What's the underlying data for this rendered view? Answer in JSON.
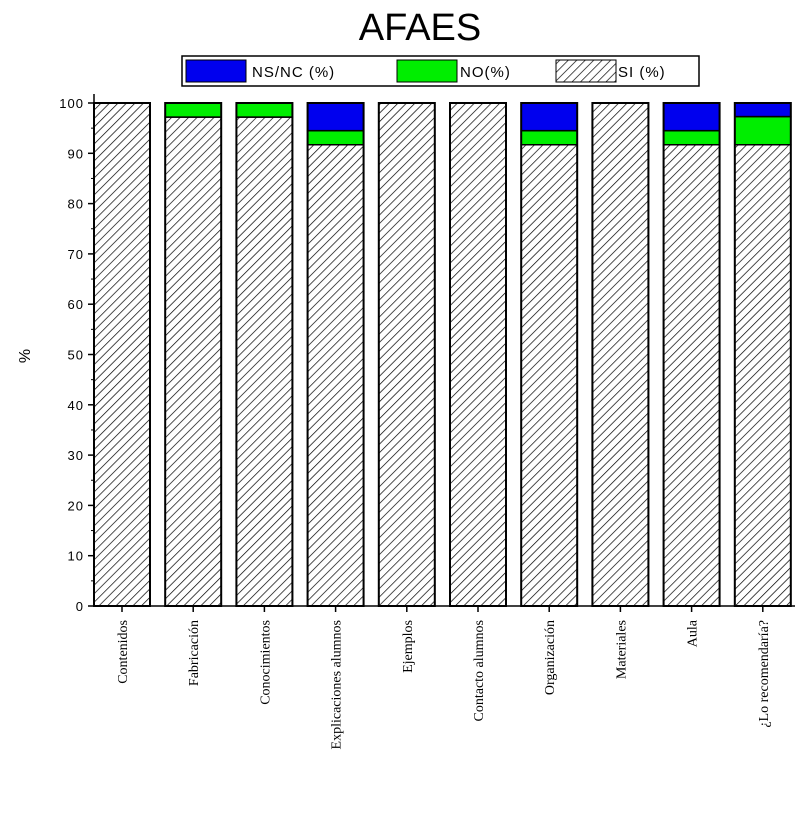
{
  "chart_data": {
    "type": "bar",
    "stacked": true,
    "title": "AFAES",
    "ylabel": "%",
    "xlabel": "",
    "ylim": [
      0,
      100
    ],
    "yticks": [
      0,
      10,
      20,
      30,
      40,
      50,
      60,
      70,
      80,
      90,
      100
    ],
    "categories": [
      "Contenidos",
      "Fabricación",
      "Conocimientos",
      "Explicaciones alumnos",
      "Ejemplos",
      "Contacto alumnos",
      "Organización",
      "Materiales",
      "Aula",
      "¿Lo recomendaría?"
    ],
    "series": [
      {
        "name": "SI (%)",
        "color": "#ffffff",
        "pattern": "diagonal-hatch",
        "values": [
          100,
          97.2,
          97.2,
          91.7,
          100,
          100,
          91.7,
          100,
          91.7,
          91.7
        ]
      },
      {
        "name": "NO(%)",
        "color": "#00ee00",
        "values": [
          0,
          2.8,
          2.8,
          2.8,
          0,
          0,
          2.8,
          0,
          2.8,
          5.6
        ]
      },
      {
        "name": "NS/NC (%)",
        "color": "#0000ee",
        "values": [
          0,
          0,
          0,
          5.5,
          0,
          0,
          5.5,
          0,
          5.5,
          2.7
        ]
      }
    ],
    "legend": {
      "position": "top",
      "entries": [
        "NS/NC (%)",
        "NO(%)",
        "SI (%)"
      ]
    },
    "grid": false
  }
}
